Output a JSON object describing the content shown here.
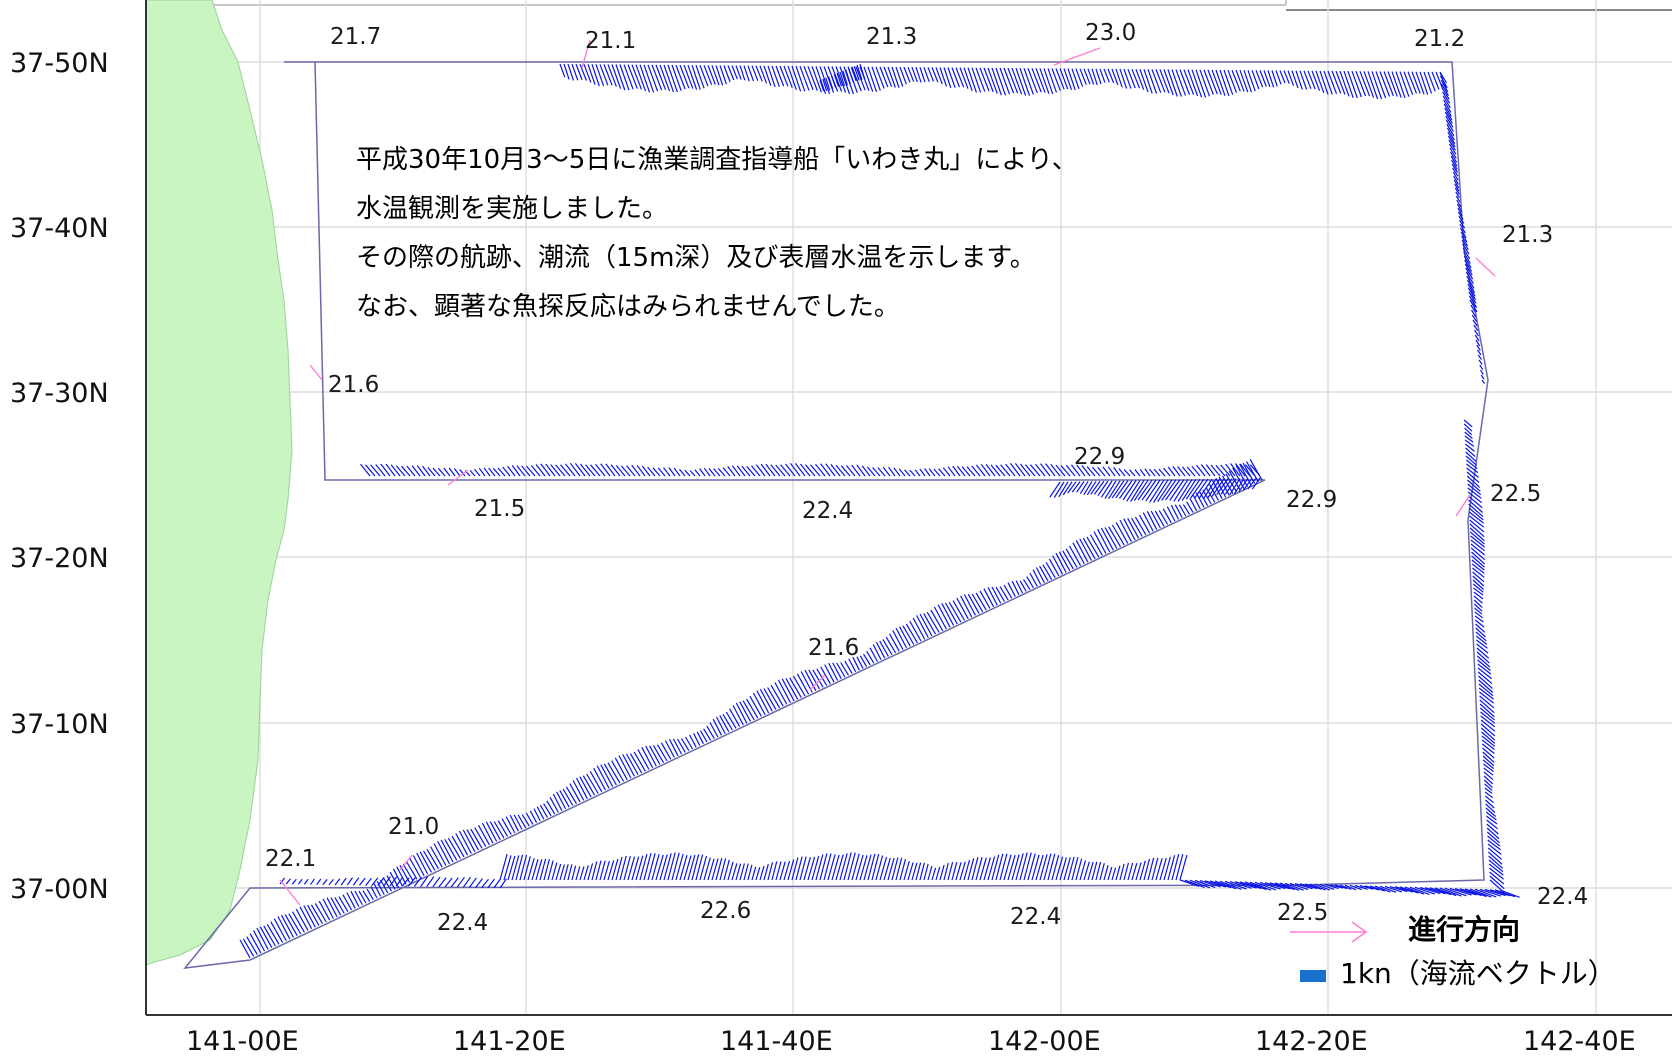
{
  "map": {
    "y_axis": [
      "37-50N",
      "37-40N",
      "37-30N",
      "37-20N",
      "37-10N",
      "37-00N"
    ],
    "x_axis": [
      "141-00E",
      "141-20E",
      "141-40E",
      "142-00E",
      "142-20E",
      "142-40E"
    ],
    "note_lines": [
      "平成30年10月3～5日に漁業調査指導船「いわき丸」により、",
      "水温観測を実施しました。",
      "その際の航跡、潮流（15m深）及び表層水温を示します。",
      "なお、顕著な魚探反応はみられませんでした。"
    ],
    "temperature_labels": [
      {
        "name": "temp-21-7-north-west",
        "value": "21.7"
      },
      {
        "name": "temp-21-1-north",
        "value": "21.1"
      },
      {
        "name": "temp-21-3-north",
        "value": "21.3"
      },
      {
        "name": "temp-23-0-north",
        "value": "23.0"
      },
      {
        "name": "temp-21-2-north-east",
        "value": "21.2"
      },
      {
        "name": "temp-21-3-east",
        "value": "21.3"
      },
      {
        "name": "temp-21-6-west",
        "value": "21.6"
      },
      {
        "name": "temp-21-5-mid",
        "value": "21.5"
      },
      {
        "name": "temp-22-4-mid",
        "value": "22.4"
      },
      {
        "name": "temp-22-9-mid-upper",
        "value": "22.9"
      },
      {
        "name": "temp-22-9-mid-east",
        "value": "22.9"
      },
      {
        "name": "temp-22-5-east",
        "value": "22.5"
      },
      {
        "name": "temp-21-6-diagonal",
        "value": "21.6"
      },
      {
        "name": "temp-21-0-diagonal",
        "value": "21.0"
      },
      {
        "name": "temp-22-1-south-west",
        "value": "22.1"
      },
      {
        "name": "temp-22-4-south-1",
        "value": "22.4"
      },
      {
        "name": "temp-22-6-south",
        "value": "22.6"
      },
      {
        "name": "temp-22-4-south-2",
        "value": "22.4"
      },
      {
        "name": "temp-22-5-south",
        "value": "22.5"
      },
      {
        "name": "temp-22-4-south-east",
        "value": "22.4"
      }
    ],
    "legend": {
      "direction_label": "進行方向",
      "vector_label": "1kn（海流ベクトル）",
      "direction_color": "#ff7fd0",
      "vector_color": "#1a6fd0"
    },
    "colors": {
      "land": "#c8f5c0",
      "track": "#6a6aa8",
      "current_vectors": "#0a14e6",
      "grid": "#dddddd"
    }
  }
}
